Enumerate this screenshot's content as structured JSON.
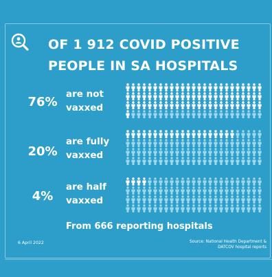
{
  "header": {
    "logo_icon": "magnifier-person-icon",
    "title_line1": "OF 1 912 COVID POSITIVE",
    "title_line2": "PEOPLE IN SA HOSPITALS"
  },
  "rows": [
    {
      "percent": "76%",
      "label_line1": "are not",
      "label_line2": "vaxxed",
      "share": 0.76
    },
    {
      "percent": "20%",
      "label_line1": "are fully",
      "label_line2": "vaxxed",
      "share": 0.2
    },
    {
      "percent": "4%",
      "label_line1": "are half",
      "label_line2": "vaxxed",
      "share": 0.04
    }
  ],
  "footer": {
    "note": "From 666 reporting hospitals",
    "date": "6 April 2022",
    "source_line1": "Source: National Health Department &",
    "source_line2": "DATCOV hospital reports"
  },
  "colors": {
    "background": "#2c9ec9",
    "highlight_figure": "#ffffff",
    "dim_figure": "#9ed8ec"
  }
}
